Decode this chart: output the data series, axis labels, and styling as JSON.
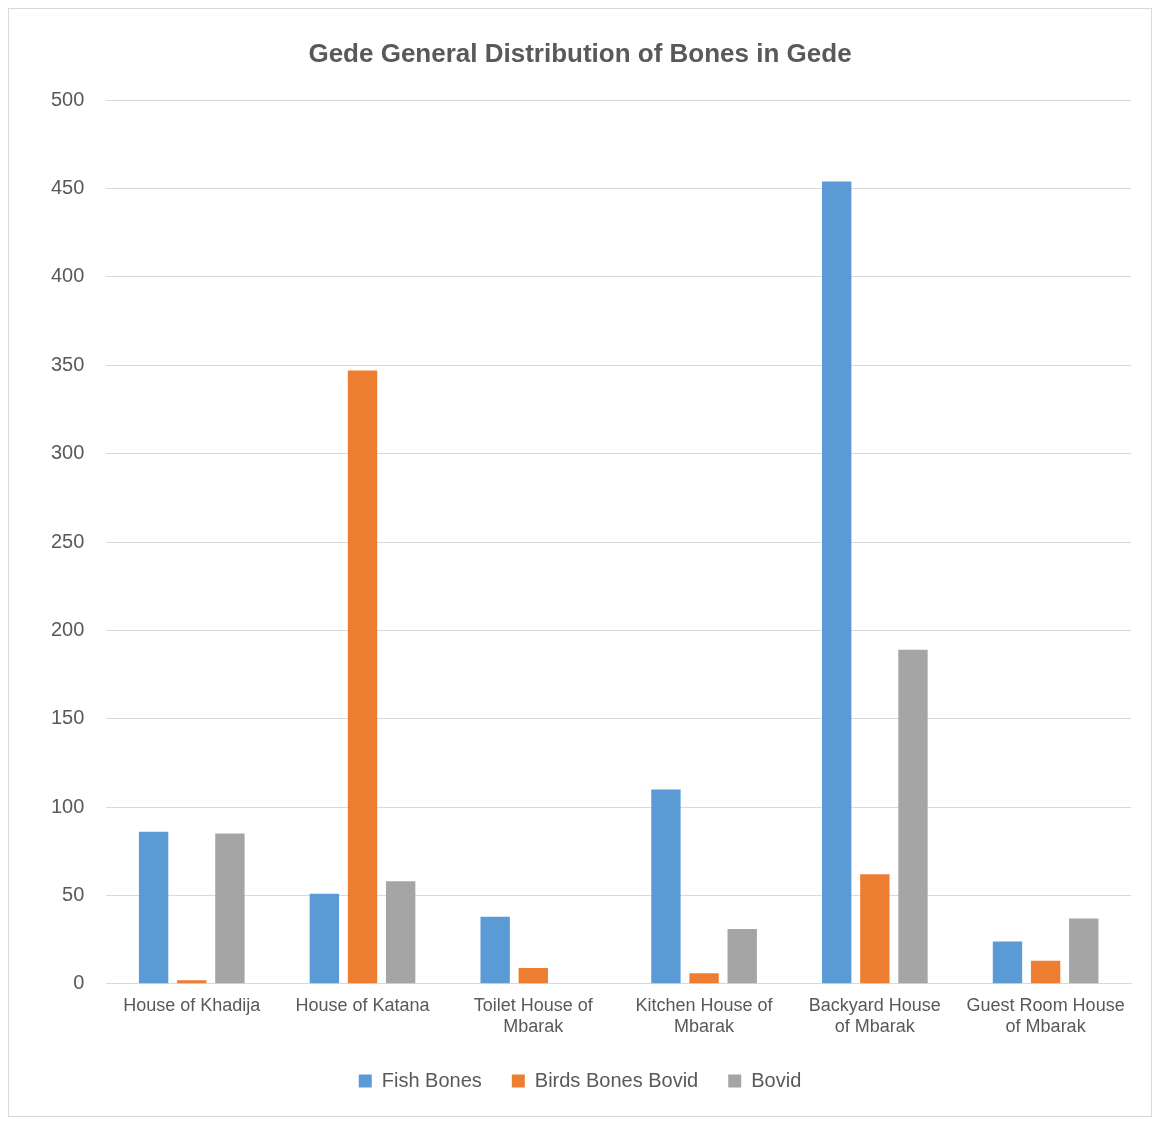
{
  "chart_data": {
    "type": "bar",
    "title": "Gede General Distribution of Bones in Gede",
    "categories": [
      "House of Khadija",
      "House of Katana",
      "Toilet House of Mbarak",
      "Kitchen House of Mbarak",
      "Backyard House of Mbarak",
      "Guest Room House of Mbarak"
    ],
    "series": [
      {
        "name": "Fish Bones",
        "color": "#5b9bd5",
        "values": [
          86,
          51,
          38,
          110,
          454,
          24
        ]
      },
      {
        "name": "Birds Bones Bovid",
        "color": "#ed7d31",
        "values": [
          2,
          347,
          9,
          6,
          62,
          13
        ]
      },
      {
        "name": "Bovid",
        "color": "#a5a5a5",
        "values": [
          85,
          58,
          0,
          31,
          189,
          37
        ]
      }
    ],
    "ylim": [
      0,
      500
    ],
    "yticks": [
      0,
      50,
      100,
      150,
      200,
      250,
      300,
      350,
      400,
      450,
      500
    ],
    "grid": "y",
    "legend": "bottom"
  }
}
